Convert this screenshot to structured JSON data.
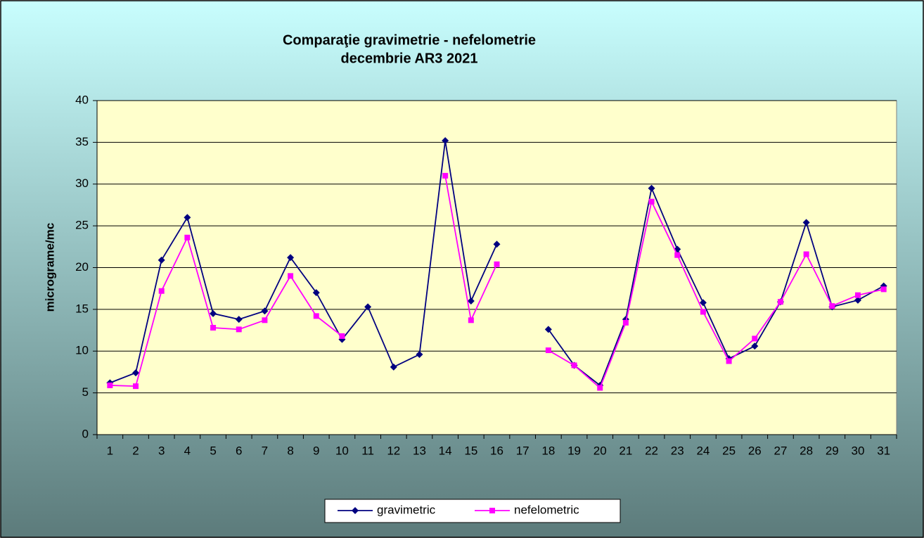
{
  "chart_data": {
    "type": "line",
    "title": [
      "Comparaţie gravimetrie - nefelometrie",
      "decembrie AR3 2021"
    ],
    "y_label": "micrograme/mc",
    "categories": [
      "1",
      "2",
      "3",
      "4",
      "5",
      "6",
      "7",
      "8",
      "9",
      "10",
      "11",
      "12",
      "13",
      "14",
      "15",
      "16",
      "17",
      "18",
      "19",
      "20",
      "21",
      "22",
      "23",
      "24",
      "25",
      "26",
      "27",
      "28",
      "29",
      "30",
      "31"
    ],
    "series": [
      {
        "name": "gravimetric",
        "color": "#000080",
        "marker": "diamond",
        "values": [
          6.2,
          7.4,
          20.9,
          26,
          14.5,
          13.8,
          14.8,
          21.2,
          17,
          11.4,
          15.3,
          8.1,
          9.6,
          35.2,
          16,
          22.8,
          null,
          12.6,
          8.3,
          5.9,
          13.8,
          29.5,
          22.2,
          15.8,
          9.1,
          10.6,
          15.9,
          25.4,
          15.3,
          16.1,
          17.8
        ]
      },
      {
        "name": "nefelometric",
        "color": "#ff00ff",
        "marker": "square",
        "values": [
          5.9,
          5.8,
          17.2,
          23.6,
          12.8,
          12.6,
          13.7,
          19,
          14.2,
          11.8,
          null,
          null,
          null,
          31,
          13.7,
          20.4,
          null,
          10.1,
          8.3,
          5.6,
          13.4,
          27.9,
          21.5,
          14.7,
          8.8,
          11.5,
          15.9,
          21.6,
          15.4,
          16.7,
          17.4
        ]
      }
    ],
    "ylim": [
      0,
      40
    ],
    "yticks": [
      0,
      5,
      10,
      15,
      20,
      25,
      30,
      35,
      40
    ],
    "grid": true,
    "legend": "bottom"
  }
}
